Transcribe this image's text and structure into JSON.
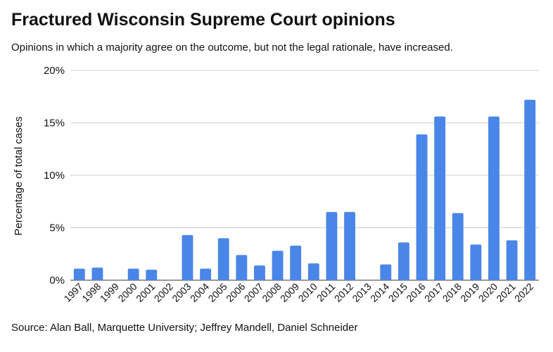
{
  "chart_data": {
    "type": "bar",
    "title": "Fractured Wisconsin Supreme Court opinions",
    "subtitle": "Opinions in which a majority agree on the outcome, but not the legal rationale, have increased.",
    "y_label": "Percentage of total cases",
    "source": "Source: Alan Ball, Marquette University; Jeffrey Mandell, Daniel Schneider",
    "categories": [
      "1997",
      "1998",
      "1999",
      "2000",
      "2001",
      "2002",
      "2003",
      "2004",
      "2005",
      "2006",
      "2007",
      "2008",
      "2009",
      "2010",
      "2011",
      "2012",
      "2013",
      "2014",
      "2015",
      "2016",
      "2017",
      "2018",
      "2019",
      "2020",
      "2021",
      "2022"
    ],
    "values": [
      1.1,
      1.2,
      0,
      1.1,
      1.0,
      0,
      4.3,
      1.1,
      4.0,
      2.4,
      1.4,
      2.8,
      3.3,
      1.6,
      6.5,
      6.5,
      0,
      1.5,
      3.6,
      13.9,
      15.6,
      6.4,
      3.4,
      15.6,
      3.8,
      17.2
    ],
    "color": "#4a86e8",
    "ylim": [
      0,
      20
    ],
    "yticks": [
      {
        "value": 0,
        "label": "0%"
      },
      {
        "value": 5,
        "label": "5%"
      },
      {
        "value": 10,
        "label": "10%"
      },
      {
        "value": 15,
        "label": "15%"
      },
      {
        "value": 20,
        "label": "20%"
      }
    ],
    "grid": true
  }
}
